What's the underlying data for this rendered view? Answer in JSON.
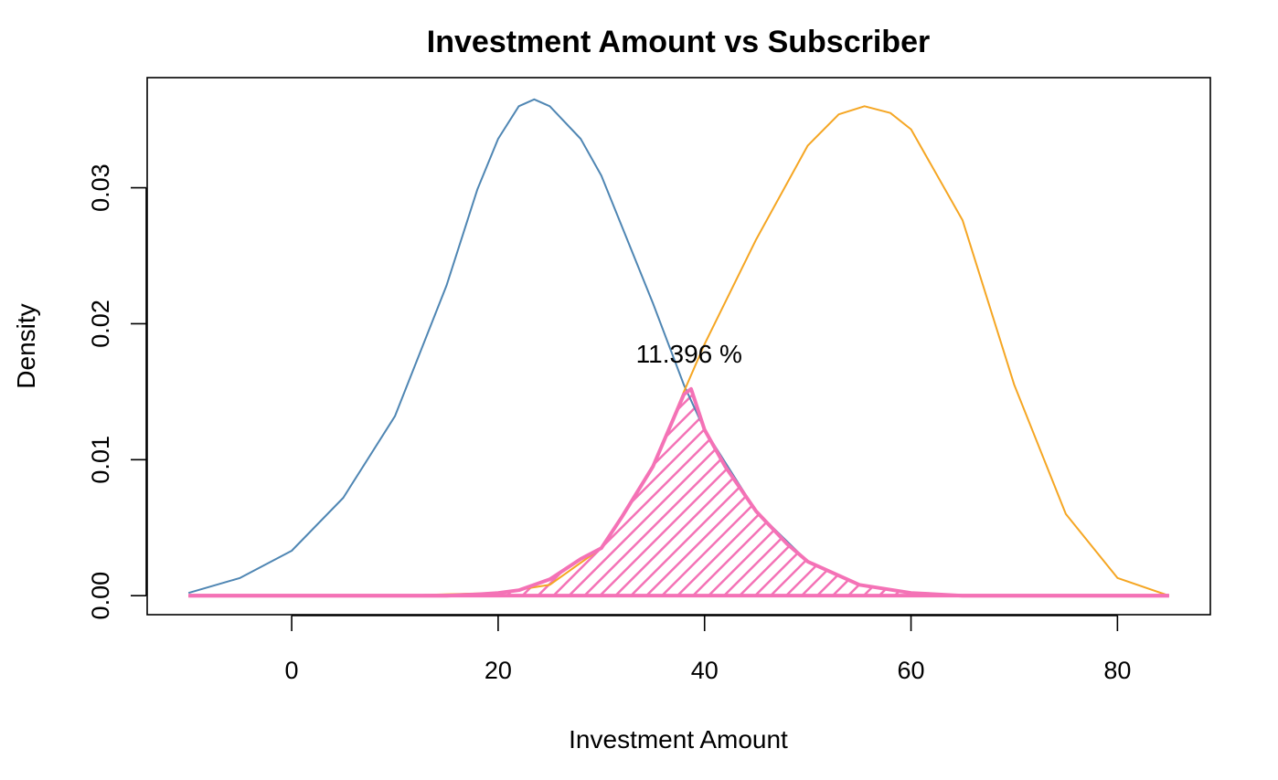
{
  "chart_data": {
    "type": "line",
    "title": "Investment Amount vs Subscriber",
    "xlabel": "Investment Amount",
    "ylabel": "Density",
    "xlim": [
      -14,
      89
    ],
    "ylim": [
      -0.0014,
      0.0381
    ],
    "x_ticks": [
      0,
      20,
      40,
      60,
      80
    ],
    "x_tick_labels": [
      "0",
      "20",
      "40",
      "60",
      "80"
    ],
    "y_ticks": [
      0.0,
      0.01,
      0.02,
      0.03
    ],
    "y_tick_labels": [
      "0.00",
      "0.01",
      "0.02",
      "0.03"
    ],
    "grid": false,
    "series": [
      {
        "color": "#4f86b3",
        "x": [
          -10,
          -5,
          0,
          5,
          10,
          15,
          18,
          20,
          22,
          23.5,
          25,
          28,
          30,
          35,
          38,
          40,
          45,
          50,
          55,
          60,
          65,
          70,
          75,
          80,
          85
        ],
        "y": [
          0.0002,
          0.0013,
          0.0033,
          0.0072,
          0.0132,
          0.0228,
          0.0299,
          0.0336,
          0.036,
          0.0365,
          0.036,
          0.0336,
          0.0309,
          0.0215,
          0.0155,
          0.0122,
          0.0062,
          0.0025,
          0.0008,
          0.0002,
          0.0,
          0.0,
          0.0,
          0.0,
          0.0
        ]
      },
      {
        "color": "#f5a623",
        "x": [
          -10,
          0,
          10,
          20,
          25,
          30,
          35,
          38,
          40,
          45,
          50,
          53,
          55.5,
          58,
          60,
          65,
          70,
          75,
          80,
          85
        ],
        "y": [
          0.0,
          0.0,
          0.0,
          0.0002,
          0.0008,
          0.0035,
          0.0095,
          0.015,
          0.0185,
          0.0262,
          0.0331,
          0.0354,
          0.036,
          0.0355,
          0.0343,
          0.0276,
          0.0155,
          0.006,
          0.0013,
          0.0
        ]
      }
    ],
    "overlap": {
      "color": "#f472b6",
      "x": [
        -10,
        0,
        10,
        15,
        18,
        20,
        22,
        25,
        28,
        30,
        32,
        35,
        38,
        38.7,
        40,
        42,
        45,
        48,
        50,
        55,
        60,
        65,
        70,
        75,
        80,
        85
      ],
      "y": [
        0.0,
        0.0,
        0.0,
        0.0,
        0.0001,
        0.0002,
        0.0004,
        0.0012,
        0.0027,
        0.0035,
        0.0058,
        0.0095,
        0.0148,
        0.0152,
        0.0122,
        0.0095,
        0.0062,
        0.0038,
        0.0025,
        0.0008,
        0.0002,
        0.0,
        0.0,
        0.0,
        0.0,
        0.0
      ],
      "label": "11.396 %",
      "label_x": 38.5,
      "label_y": 0.0178
    }
  }
}
